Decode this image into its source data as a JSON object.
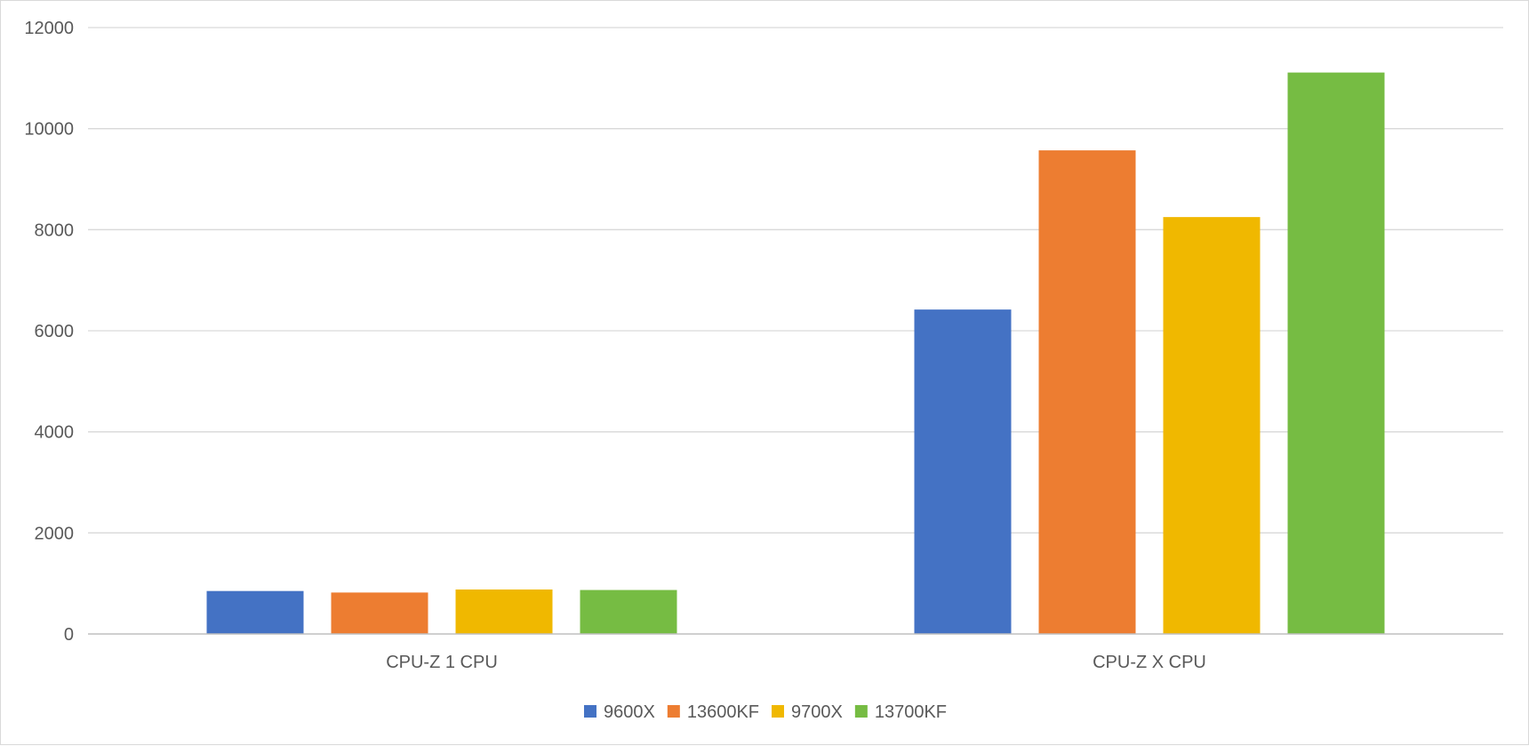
{
  "chart_data": {
    "type": "bar",
    "title": "",
    "xlabel": "",
    "ylabel": "",
    "categories": [
      "CPU-Z 1 CPU",
      "CPU-Z X CPU"
    ],
    "series": [
      {
        "name": "9600X",
        "color": "#4472C4",
        "values": [
          850,
          6420
        ]
      },
      {
        "name": "13600KF",
        "color": "#ED7D31",
        "values": [
          820,
          9570
        ]
      },
      {
        "name": "9700X",
        "color": "#F0B800",
        "values": [
          880,
          8250
        ]
      },
      {
        "name": "13700KF",
        "color": "#76BC43",
        "values": [
          870,
          11110
        ]
      }
    ],
    "ylim": [
      0,
      12000
    ],
    "yticks": [
      0,
      2000,
      4000,
      6000,
      8000,
      10000,
      12000
    ],
    "grid": true,
    "legend_position": "bottom",
    "colors": {
      "gridline": "#d9d9d9",
      "axis_line": "#bfbfbf",
      "text": "#595959"
    }
  }
}
